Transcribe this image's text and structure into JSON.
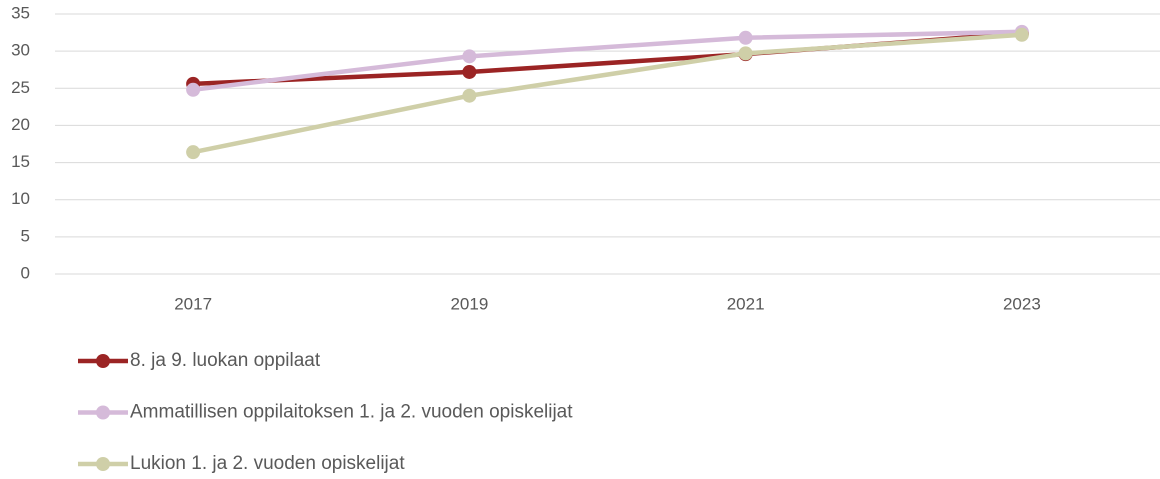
{
  "chart_data": {
    "type": "line",
    "categories": [
      "2017",
      "2019",
      "2021",
      "2023"
    ],
    "series": [
      {
        "name": "8. ja 9. luokan oppilaat",
        "color": "#9b2424",
        "values": [
          25.6,
          27.2,
          29.6,
          32.4
        ]
      },
      {
        "name": "Ammatillisen oppilaitoksen 1. ja 2. vuoden opiskelijat",
        "color": "#d5bad9",
        "values": [
          24.8,
          29.3,
          31.8,
          32.6
        ]
      },
      {
        "name": "Lukion 1. ja 2. vuoden opiskelijat",
        "color": "#cfcfa8",
        "values": [
          16.4,
          24.0,
          29.7,
          32.2
        ]
      }
    ],
    "ylim": [
      0,
      35
    ],
    "yticks": [
      0,
      5,
      10,
      15,
      20,
      25,
      30,
      35
    ],
    "grid": true,
    "legend": "bottom"
  }
}
